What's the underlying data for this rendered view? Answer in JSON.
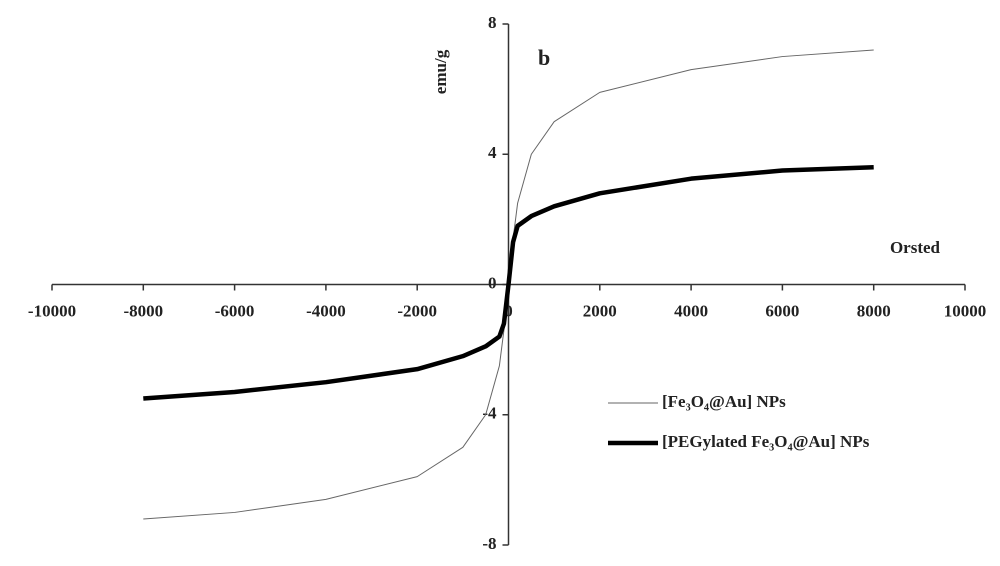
{
  "chart_data": {
    "type": "line",
    "x_label": "Orsted",
    "y_label": "emu/g",
    "annotation": "b",
    "x": [
      -8000,
      -6000,
      -4000,
      -2000,
      -1000,
      -500,
      -200,
      -100,
      0,
      100,
      200,
      500,
      1000,
      2000,
      4000,
      6000,
      8000
    ],
    "series": [
      {
        "name": "[Fe₃O₄@Au] NPs",
        "color": "#666666",
        "width": 1,
        "values": [
          -7.2,
          -7.0,
          -6.6,
          -5.9,
          -5.0,
          -4.0,
          -2.5,
          -1.4,
          0,
          1.4,
          2.5,
          4.0,
          5.0,
          5.9,
          6.6,
          7.0,
          7.2
        ]
      },
      {
        "name": "[PEGylated Fe₃O₄@Au] NPs",
        "color": "#000000",
        "width": 4.5,
        "values": [
          -3.5,
          -3.3,
          -3.0,
          -2.6,
          -2.2,
          -1.9,
          -1.6,
          -1.2,
          0,
          1.3,
          1.8,
          2.1,
          2.4,
          2.8,
          3.25,
          3.5,
          3.6
        ]
      }
    ],
    "xlim": [
      -10000,
      10000
    ],
    "xticks": [
      -10000,
      -8000,
      -6000,
      -4000,
      -2000,
      0,
      2000,
      4000,
      6000,
      8000,
      10000
    ],
    "ylim": [
      -8,
      8
    ],
    "yticks": [
      -8,
      -4,
      0,
      4,
      8
    ],
    "legend": "lower-right"
  }
}
